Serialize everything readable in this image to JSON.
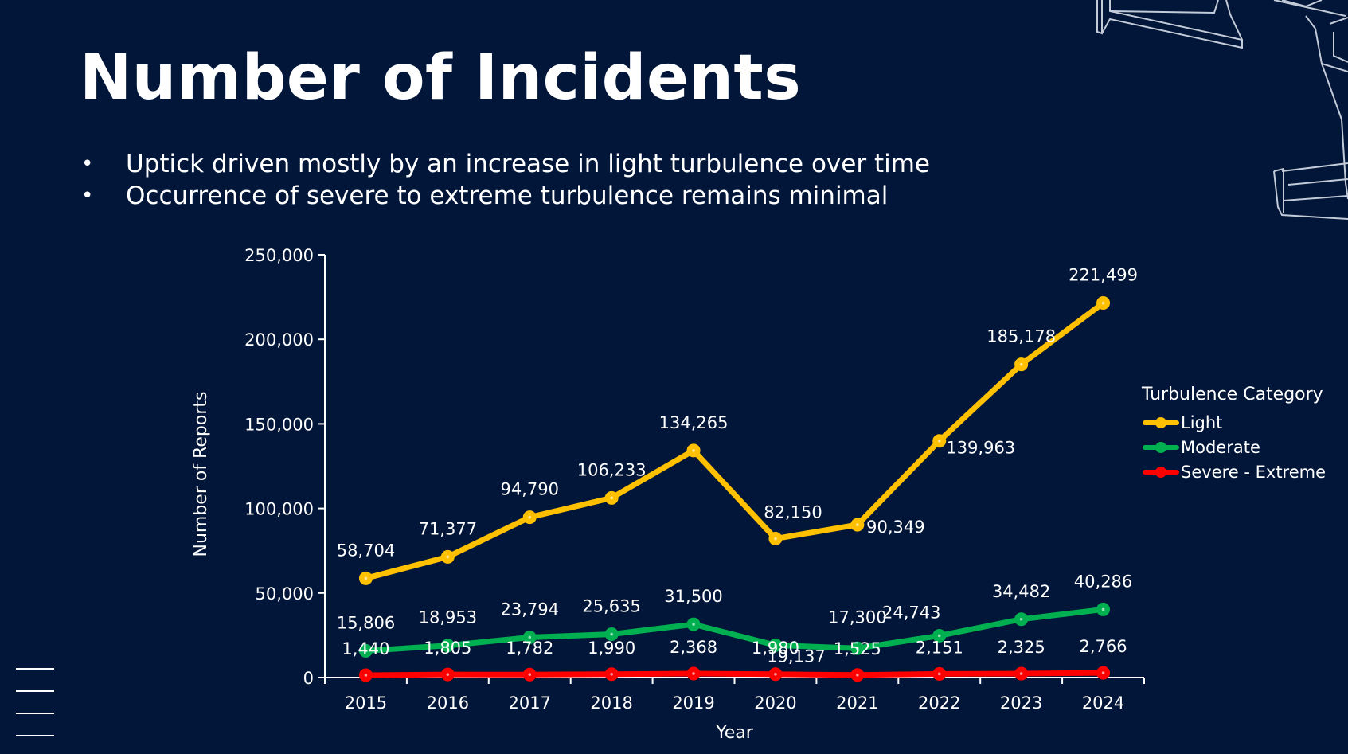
{
  "slide": {
    "title": "Number of Incidents",
    "bullets": [
      "Uptick driven mostly by an increase in light turbulence over time",
      "Occurrence of severe to extreme turbulence remains minimal"
    ]
  },
  "colors": {
    "background": "#011638",
    "text": "#ffffff",
    "light": "#FFC000",
    "moderate": "#00B050",
    "severe": "#FF0000"
  },
  "chart_data": {
    "type": "line",
    "title": "",
    "xlabel": "Year",
    "ylabel": "Number of Reports",
    "ylim": [
      0,
      250000
    ],
    "yticks": [
      "0",
      "50,000",
      "100,000",
      "150,000",
      "200,000",
      "250,000"
    ],
    "ytick_values": [
      0,
      50000,
      100000,
      150000,
      200000,
      250000
    ],
    "categories": [
      "2015",
      "2016",
      "2017",
      "2018",
      "2019",
      "2020",
      "2021",
      "2022",
      "2023",
      "2024"
    ],
    "legend_title": "Turbulence Category",
    "legend_position": "right",
    "grid": false,
    "series": [
      {
        "name": "Light",
        "color": "#FFC000",
        "values": [
          58704,
          71377,
          94790,
          106233,
          134265,
          82150,
          90349,
          139963,
          185178,
          221499
        ],
        "labels": [
          "58,704",
          "71,377",
          "94,790",
          "106,233",
          "134,265",
          "82,150",
          "90,349",
          "139,963",
          "185,178",
          "221,499"
        ]
      },
      {
        "name": "Moderate",
        "color": "#00B050",
        "values": [
          15806,
          18953,
          23794,
          25635,
          31500,
          19137,
          17300,
          24743,
          34482,
          40286
        ],
        "labels": [
          "15,806",
          "18,953",
          "23,794",
          "25,635",
          "31,500",
          "19,137",
          "17,300",
          "24,743",
          "34,482",
          "40,286"
        ]
      },
      {
        "name": "Severe - Extreme",
        "color": "#FF0000",
        "values": [
          1440,
          1805,
          1782,
          1990,
          2368,
          1980,
          1525,
          2151,
          2325,
          2766
        ],
        "labels": [
          "1,440",
          "1,805",
          "1,782",
          "1,990",
          "2,368",
          "1,980",
          "1,525",
          "2,151",
          "2,325",
          "2,766"
        ]
      }
    ]
  }
}
